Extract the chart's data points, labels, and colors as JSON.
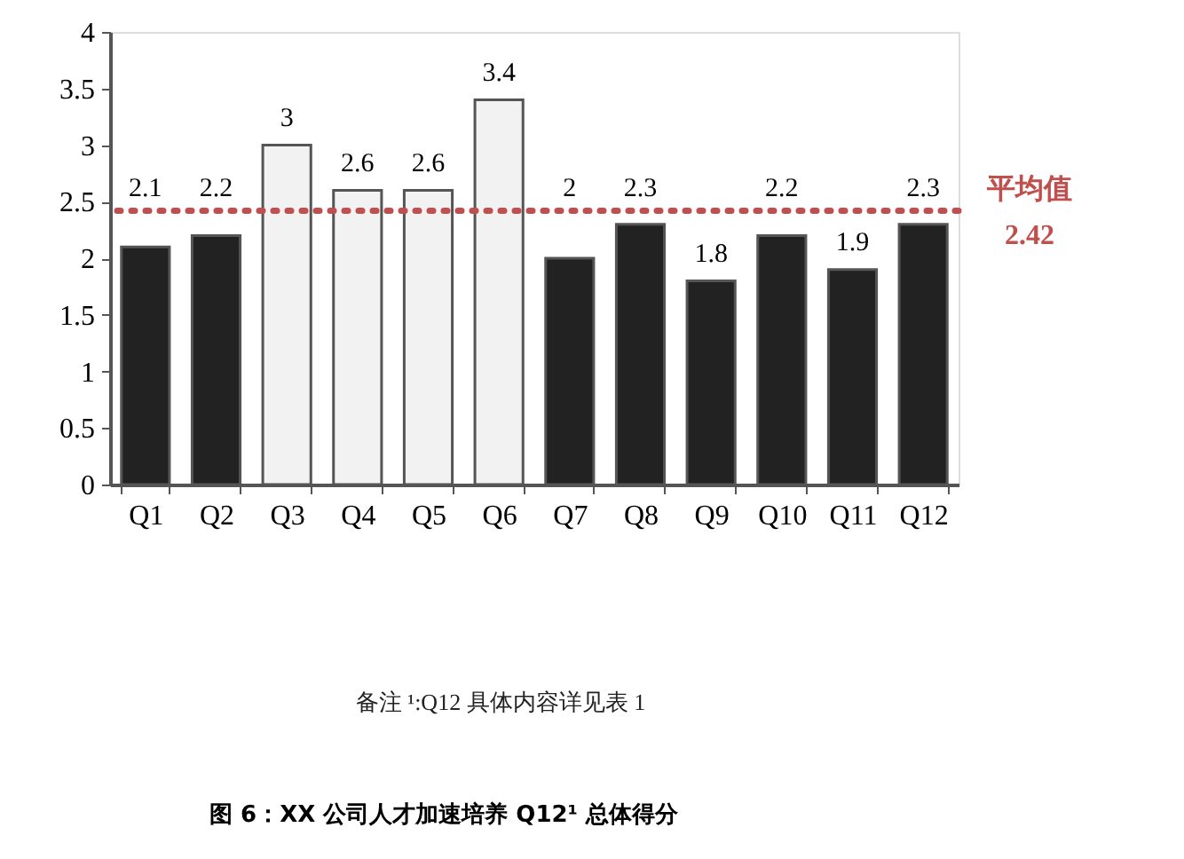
{
  "chart_data": {
    "type": "bar",
    "title": "图 6：XX 公司人才加速培养 Q12¹ 总体得分",
    "categories": [
      "Q1",
      "Q2",
      "Q3",
      "Q4",
      "Q5",
      "Q6",
      "Q7",
      "Q8",
      "Q9",
      "Q10",
      "Q11",
      "Q12"
    ],
    "values": [
      2.1,
      2.2,
      3,
      2.6,
      2.6,
      3.4,
      2,
      2.3,
      1.8,
      2.2,
      1.9,
      2.3
    ],
    "colors": [
      "#222222",
      "#222222",
      "#f2f2f2",
      "#f2f2f2",
      "#f2f2f2",
      "#f2f2f2",
      "#222222",
      "#222222",
      "#222222",
      "#222222",
      "#222222",
      "#222222"
    ],
    "ylim": [
      0,
      4
    ],
    "yticks": [
      0,
      0.5,
      1,
      1.5,
      2,
      2.5,
      3,
      3.5,
      4
    ],
    "grid": false,
    "data_labels": true,
    "ref_lines": [
      {
        "axis": "y",
        "value": 2.42,
        "label": "平均值\n2.42",
        "color": "#c0504d",
        "line_style": "dotted"
      }
    ],
    "annotations": [
      "备注 ¹:Q12 具体内容详见表 1"
    ]
  }
}
